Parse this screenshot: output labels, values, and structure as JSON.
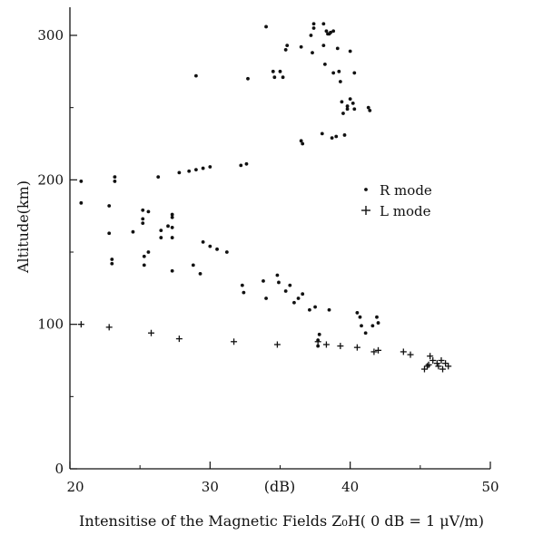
{
  "chart_data": {
    "type": "scatter",
    "title": "",
    "xlabel": "Intensitise of the Magnetic Fields Z₀H( 0 dB = 1 μV/m)",
    "xunit_label": "(dB)",
    "ylabel": "Altitude(km)",
    "xlim": [
      20,
      50
    ],
    "ylim": [
      0,
      320
    ],
    "x_ticks": [
      {
        "value": 20,
        "label": "20"
      },
      {
        "value": 30,
        "label": "30"
      },
      {
        "value": 40,
        "label": "40"
      },
      {
        "value": 50,
        "label": "50"
      }
    ],
    "y_ticks": [
      {
        "value": 0,
        "label": "0"
      },
      {
        "value": 100,
        "label": "100"
      },
      {
        "value": 200,
        "label": "200"
      },
      {
        "value": 300,
        "label": "300"
      }
    ],
    "grid": false,
    "legend_position": "right",
    "series": [
      {
        "name": "R mode",
        "marker": "dot",
        "points": [
          [
            20.8,
            199
          ],
          [
            20.8,
            184
          ],
          [
            22.8,
            182
          ],
          [
            22.8,
            163
          ],
          [
            23,
            145
          ],
          [
            23,
            142
          ],
          [
            23.2,
            202
          ],
          [
            23.2,
            199
          ],
          [
            24.5,
            164
          ],
          [
            25.2,
            179
          ],
          [
            25.2,
            173
          ],
          [
            25.2,
            170
          ],
          [
            25.3,
            147
          ],
          [
            25.3,
            141
          ],
          [
            25.6,
            178
          ],
          [
            25.6,
            150
          ],
          [
            26.3,
            202
          ],
          [
            26.5,
            165
          ],
          [
            26.5,
            160
          ],
          [
            27,
            168
          ],
          [
            27.3,
            176
          ],
          [
            27.3,
            174
          ],
          [
            27.3,
            167
          ],
          [
            27.3,
            160
          ],
          [
            27.3,
            137
          ],
          [
            27.8,
            205
          ],
          [
            28.5,
            206
          ],
          [
            28.8,
            141
          ],
          [
            29,
            272
          ],
          [
            29,
            207
          ],
          [
            29.3,
            135
          ],
          [
            29.5,
            208
          ],
          [
            29.5,
            157
          ],
          [
            30,
            209
          ],
          [
            30,
            154
          ],
          [
            30.5,
            152
          ],
          [
            31.2,
            150
          ],
          [
            32.2,
            210
          ],
          [
            32.3,
            127
          ],
          [
            32.4,
            122
          ],
          [
            32.6,
            211
          ],
          [
            32.7,
            270
          ],
          [
            33.8,
            130
          ],
          [
            34,
            306
          ],
          [
            34,
            118
          ],
          [
            34.5,
            275
          ],
          [
            34.6,
            271
          ],
          [
            34.8,
            134
          ],
          [
            34.9,
            129
          ],
          [
            35,
            275
          ],
          [
            35.2,
            271
          ],
          [
            35.4,
            123
          ],
          [
            35.4,
            290
          ],
          [
            35.5,
            293
          ],
          [
            35.7,
            127
          ],
          [
            36,
            115
          ],
          [
            36.3,
            118
          ],
          [
            36.5,
            292
          ],
          [
            36.5,
            227
          ],
          [
            36.6,
            225
          ],
          [
            36.6,
            121
          ],
          [
            37.1,
            110
          ],
          [
            37.2,
            300
          ],
          [
            37.3,
            288
          ],
          [
            37.4,
            308
          ],
          [
            37.4,
            305
          ],
          [
            37.5,
            112
          ],
          [
            37.7,
            89
          ],
          [
            37.7,
            85
          ],
          [
            37.8,
            93
          ],
          [
            38,
            232
          ],
          [
            38.1,
            308
          ],
          [
            38.1,
            293
          ],
          [
            38.2,
            280
          ],
          [
            38.3,
            303
          ],
          [
            38.4,
            301
          ],
          [
            38.5,
            301
          ],
          [
            38.5,
            110
          ],
          [
            38.6,
            302
          ],
          [
            38.7,
            229
          ],
          [
            38.8,
            303
          ],
          [
            38.8,
            274
          ],
          [
            39,
            230
          ],
          [
            39.1,
            291
          ],
          [
            39.2,
            275
          ],
          [
            39.3,
            268
          ],
          [
            39.4,
            254
          ],
          [
            39.5,
            246
          ],
          [
            39.6,
            231
          ],
          [
            39.8,
            251
          ],
          [
            39.8,
            249
          ],
          [
            40,
            289
          ],
          [
            40,
            256
          ],
          [
            40.2,
            253
          ],
          [
            40.3,
            274
          ],
          [
            40.3,
            249
          ],
          [
            40.5,
            108
          ],
          [
            40.7,
            105
          ],
          [
            40.8,
            99
          ],
          [
            41.1,
            94
          ],
          [
            41.3,
            250
          ],
          [
            41.4,
            248
          ],
          [
            41.6,
            99
          ],
          [
            41.9,
            105
          ],
          [
            42,
            101
          ]
        ]
      },
      {
        "name": "L mode",
        "marker": "plus",
        "points": [
          [
            20.8,
            100
          ],
          [
            22.8,
            98
          ],
          [
            25.8,
            94
          ],
          [
            27.8,
            90
          ],
          [
            31.7,
            88
          ],
          [
            34.8,
            86
          ],
          [
            37.7,
            88
          ],
          [
            38.3,
            86
          ],
          [
            39.3,
            85
          ],
          [
            40.5,
            84
          ],
          [
            41.7,
            81
          ],
          [
            42,
            82
          ],
          [
            43.8,
            81
          ],
          [
            44.3,
            79
          ],
          [
            45.3,
            69
          ],
          [
            45.5,
            71
          ],
          [
            45.6,
            72
          ],
          [
            45.7,
            78
          ],
          [
            45.9,
            75
          ],
          [
            46.2,
            73
          ],
          [
            46.3,
            71
          ],
          [
            46.5,
            75
          ],
          [
            46.6,
            69
          ],
          [
            46.8,
            73
          ],
          [
            47,
            71
          ]
        ]
      }
    ]
  }
}
